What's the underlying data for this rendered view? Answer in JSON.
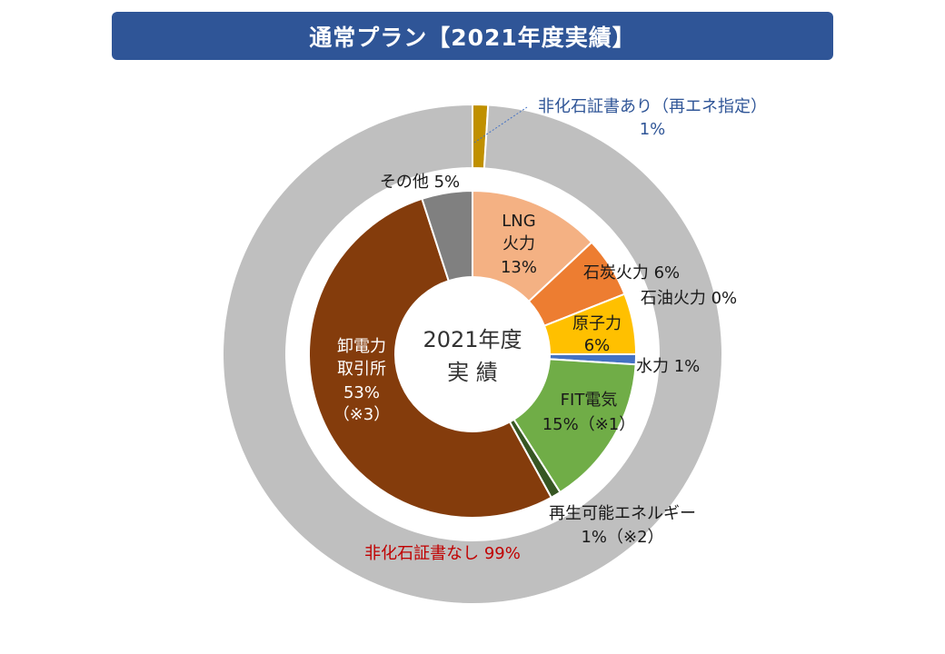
{
  "title": "通常プラン【2021年度実績】",
  "center_label": {
    "line1": "2021年度",
    "line2": "実 績"
  },
  "chart_data": [
    {
      "type": "pie",
      "ring": "outer",
      "slices": [
        {
          "key": "nfc_renewable",
          "name": "非化石証書あり（再エネ指定）",
          "value": 1,
          "color": "#c09000",
          "label_line1": "非化石証書あり（再エネ指定）",
          "label_line2": "1%"
        },
        {
          "key": "no_nfc",
          "name": "非化石証書なし",
          "value": 99,
          "color": "#bfbfbf",
          "label_line1": "非化石証書なし 99%"
        }
      ]
    },
    {
      "type": "pie",
      "ring": "inner",
      "slices": [
        {
          "key": "lng",
          "name": "LNG火力",
          "value": 13,
          "color": "#f4b183",
          "lines": [
            "LNG",
            "火力",
            "13%"
          ]
        },
        {
          "key": "coal",
          "name": "石炭火力",
          "value": 6,
          "color": "#ed7d31",
          "lines": [
            "石炭火力 6%"
          ]
        },
        {
          "key": "oil",
          "name": "石油火力",
          "value": 0,
          "color": "#c55a11",
          "lines": [
            "石油火力 0%"
          ]
        },
        {
          "key": "nuclear",
          "name": "原子力",
          "value": 6,
          "color": "#ffc000",
          "lines": [
            "原子力",
            "6%"
          ]
        },
        {
          "key": "hydro",
          "name": "水力",
          "value": 1,
          "color": "#4472c4",
          "lines": [
            "水力 1%"
          ]
        },
        {
          "key": "fit",
          "name": "FIT電気",
          "value": 15,
          "color": "#70ad47",
          "lines": [
            "FIT電気",
            "15%（※1）"
          ]
        },
        {
          "key": "renewable",
          "name": "再生可能エネルギー",
          "value": 1,
          "color": "#375623",
          "lines": [
            "再生可能エネルギー",
            "1%（※2）"
          ]
        },
        {
          "key": "jepx",
          "name": "卸電力取引所",
          "value": 53,
          "color": "#843c0c",
          "lines": [
            "卸電力",
            "取引所",
            "53%",
            "（※3）"
          ]
        },
        {
          "key": "other",
          "name": "その他",
          "value": 5,
          "color": "#808080",
          "lines": [
            "その他 5%"
          ]
        }
      ]
    }
  ]
}
